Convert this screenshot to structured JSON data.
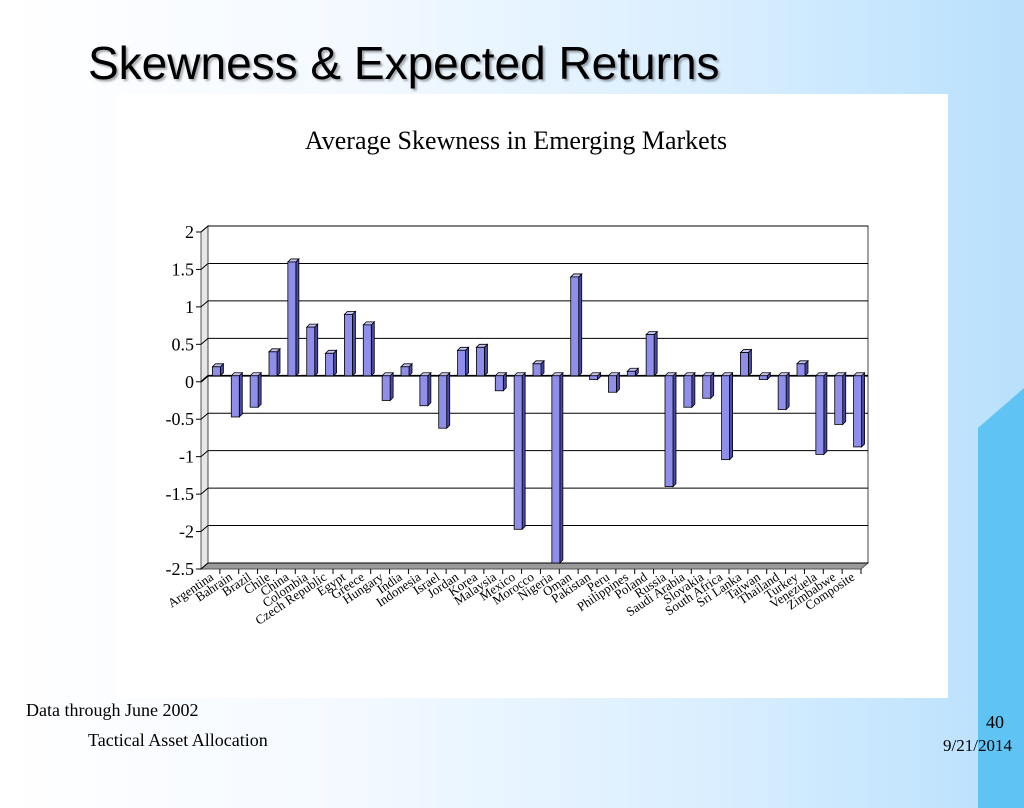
{
  "slide": {
    "title": "Skewness & Expected Returns",
    "footnote": "Data through June 2002",
    "footer_left": "Tactical Asset Allocation",
    "page_number": "40",
    "date": "9/21/2014"
  },
  "chart_data": {
    "type": "bar",
    "title": "Average Skewness in Emerging Markets",
    "xlabel": "",
    "ylabel": "",
    "ylim": [
      -2.5,
      2
    ],
    "yticks": [
      2,
      1.5,
      1,
      0.5,
      0,
      -0.5,
      -1,
      -1.5,
      -2,
      -2.5
    ],
    "grid": true,
    "bar_color": "#8f8fea",
    "categories": [
      "Argentina",
      "Bahrain",
      "Brazil",
      "Chile",
      "China",
      "Colombia",
      "Czech Republic",
      "Egypt",
      "Greece",
      "Hungary",
      "India",
      "Indonesia",
      "Israel",
      "Jordan",
      "Korea",
      "Malaysia",
      "Mexico",
      "Morocco",
      "Nigeria",
      "Oman",
      "Pakistan",
      "Peru",
      "Philippines",
      "Poland",
      "Russia",
      "Saudi Arabia",
      "Slovakia",
      "South Africa",
      "Sri Lanka",
      "Taiwan",
      "Thailand",
      "Turkey",
      "Venezuela",
      "Zimbabwe",
      "Composite"
    ],
    "values": [
      0.12,
      -0.55,
      -0.42,
      0.32,
      1.52,
      0.65,
      0.3,
      0.82,
      0.68,
      -0.33,
      0.12,
      -0.4,
      -0.7,
      0.34,
      0.38,
      -0.2,
      -2.05,
      0.16,
      -2.5,
      1.32,
      -0.05,
      -0.22,
      0.06,
      0.55,
      -1.48,
      -0.42,
      -0.3,
      -1.12,
      0.31,
      -0.05,
      -0.45,
      0.16,
      -1.05,
      -0.65,
      -0.95
    ]
  }
}
